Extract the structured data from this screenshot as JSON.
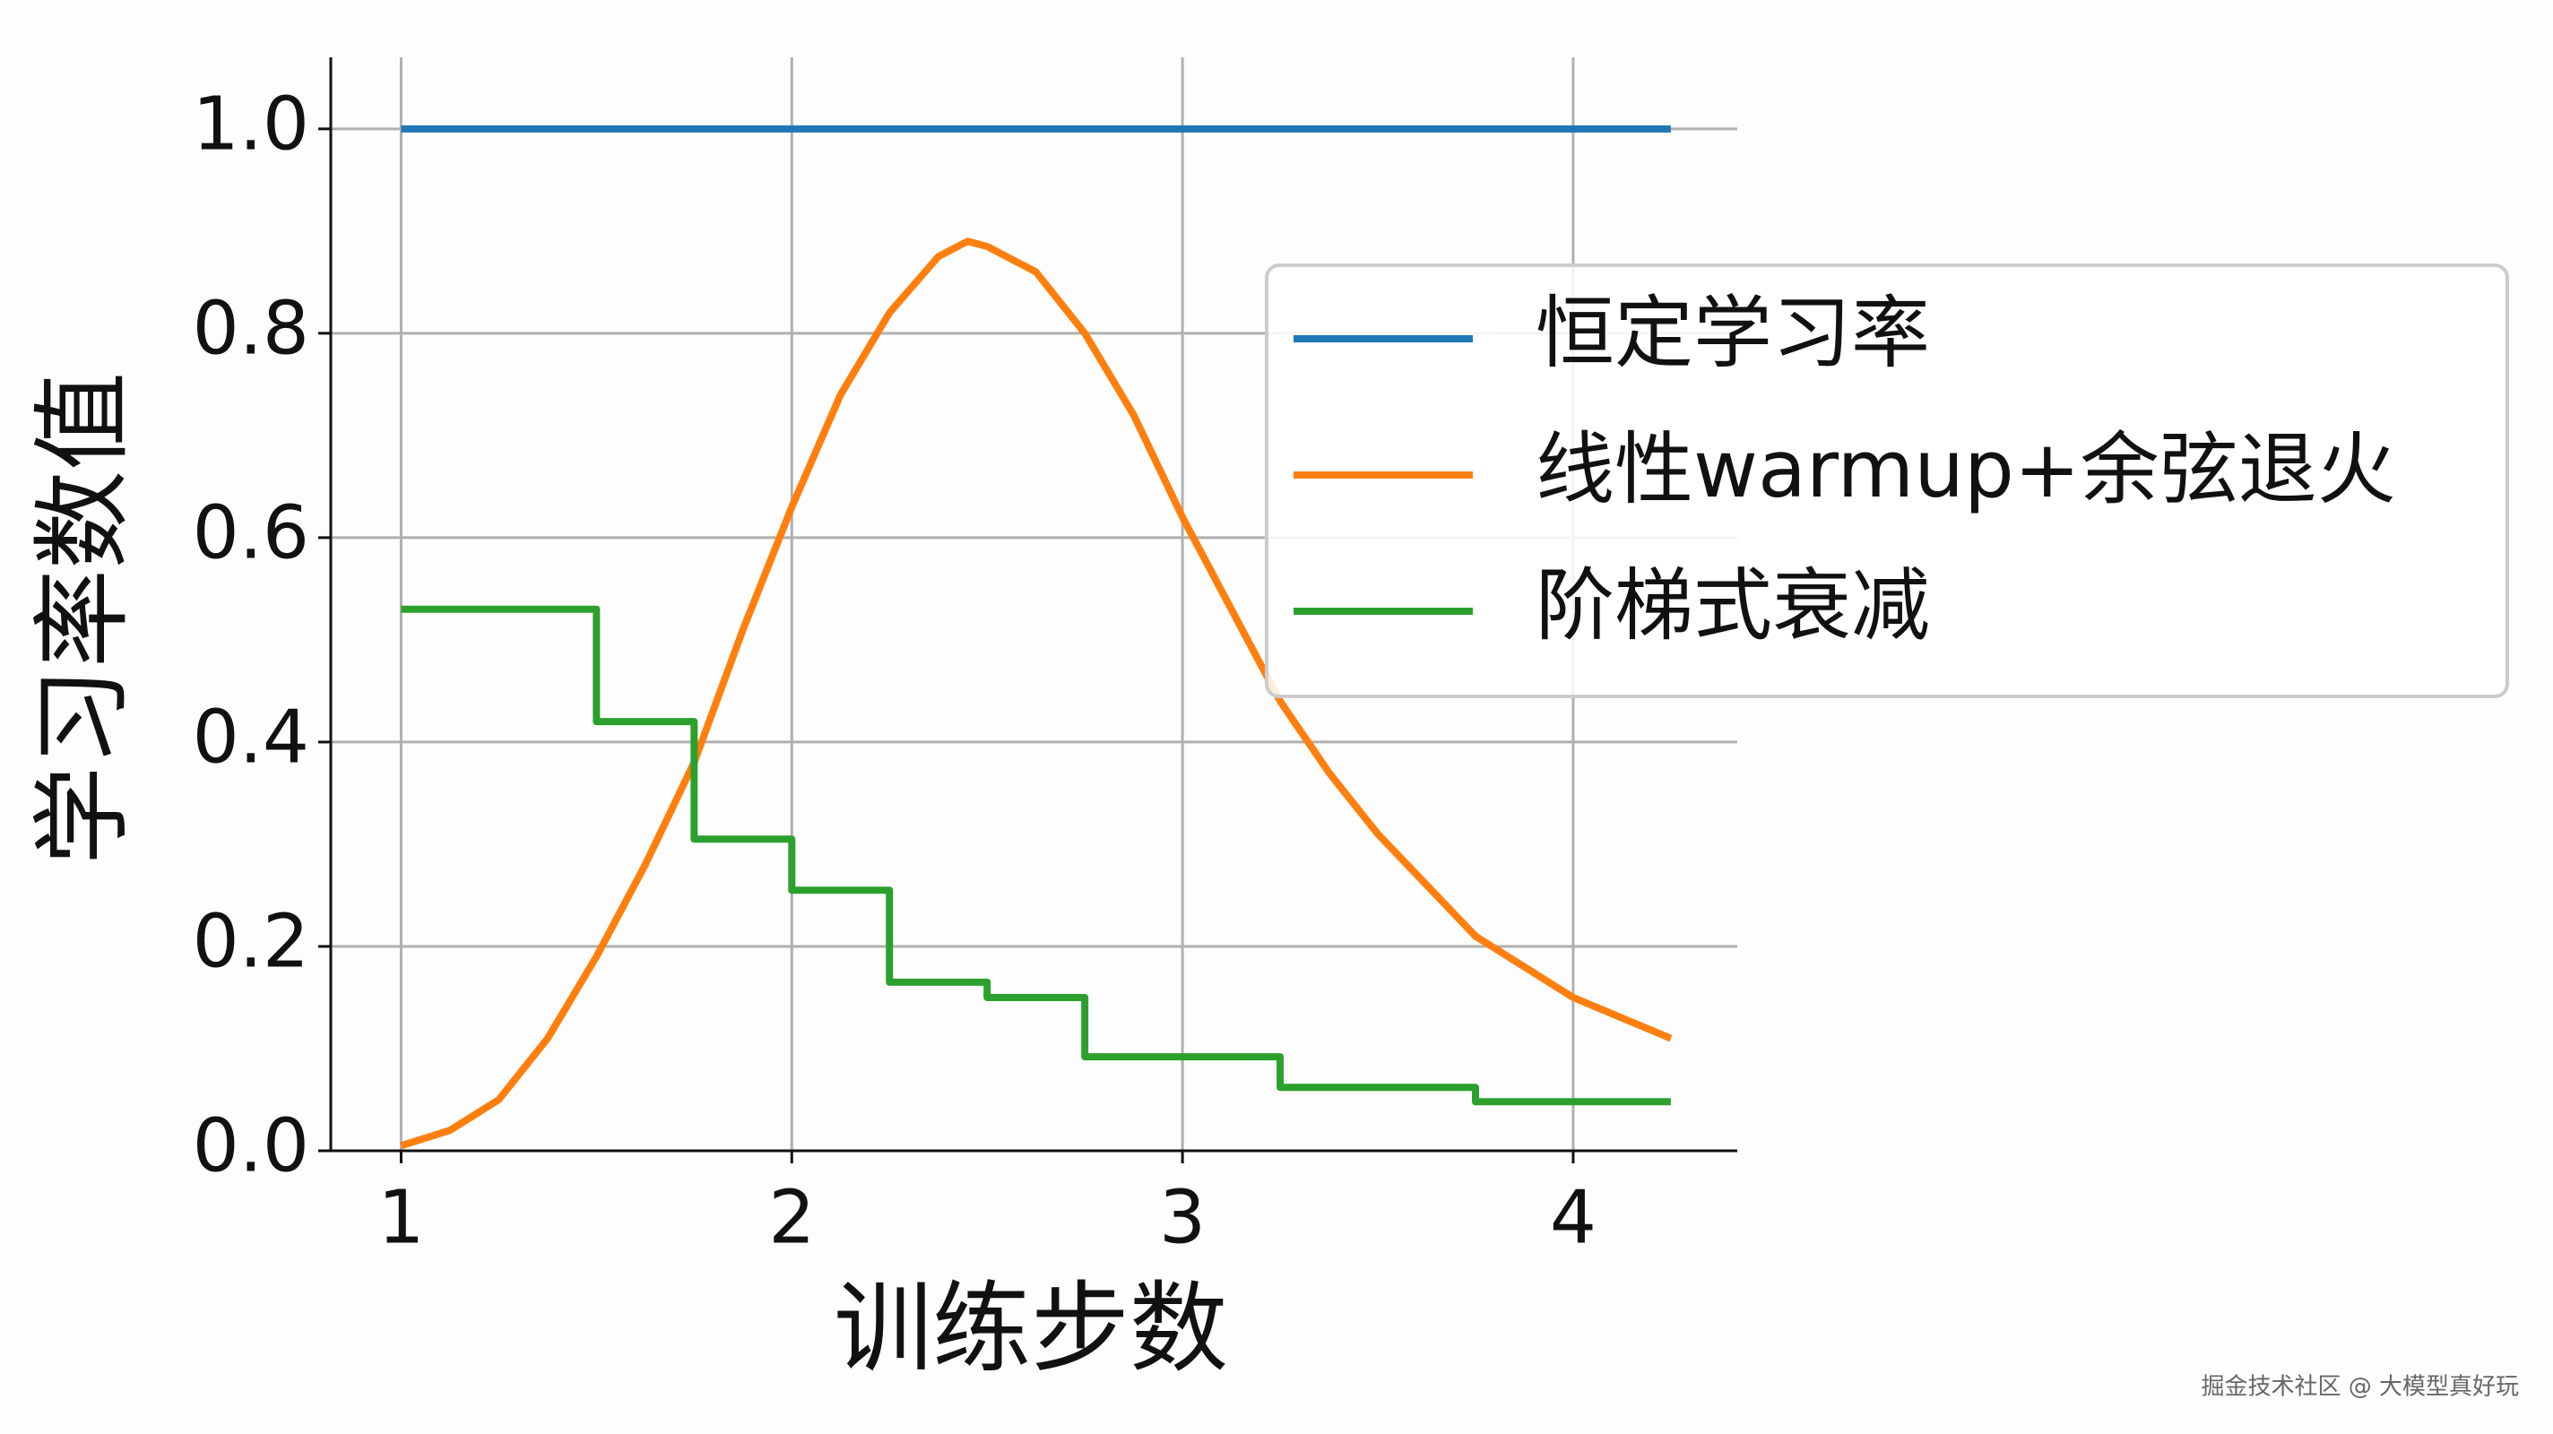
{
  "chart_data": {
    "type": "line",
    "xlabel": "训练步数",
    "ylabel": "学习率数值",
    "xlim": [
      0.82,
      4.42
    ],
    "ylim": [
      0,
      1.07
    ],
    "xticks": [
      1,
      2,
      3,
      4
    ],
    "yticks": [
      {
        "value": 0,
        "label": "0.0"
      },
      {
        "value": 0.2,
        "label": "0.2"
      },
      {
        "value": 0.4,
        "label": "0.4"
      },
      {
        "value": 0.6,
        "label": "0.6"
      },
      {
        "value": 0.8,
        "label": "0.8"
      },
      {
        "value": 1,
        "label": "1.0"
      }
    ],
    "grid": true,
    "legend": "upper right",
    "series": [
      {
        "name": "恒定学习率",
        "color": "#1f77b4",
        "x": [
          1,
          4.25
        ],
        "values": [
          1,
          1
        ]
      },
      {
        "name": "线性warmup+余弦退火",
        "color": "#ff7f0e",
        "x": [
          1,
          1.125,
          1.25,
          1.375,
          1.5,
          1.625,
          1.75,
          1.875,
          2,
          2.125,
          2.25,
          2.375,
          2.45,
          2.5,
          2.625,
          2.75,
          2.875,
          3,
          3.125,
          3.25,
          3.375,
          3.5,
          3.625,
          3.75,
          3.875,
          4,
          4.125,
          4.25
        ],
        "values": [
          0.005,
          0.02,
          0.05,
          0.11,
          0.19,
          0.28,
          0.38,
          0.51,
          0.63,
          0.74,
          0.82,
          0.875,
          0.89,
          0.885,
          0.86,
          0.8,
          0.72,
          0.62,
          0.53,
          0.44,
          0.37,
          0.31,
          0.26,
          0.21,
          0.18,
          0.15,
          0.13,
          0.11
        ]
      },
      {
        "name": "阶梯式衰减",
        "color": "#2ca02c",
        "x": [
          1,
          1.5,
          1.5,
          1.75,
          1.75,
          2,
          2,
          2.25,
          2.25,
          2.5,
          2.5,
          2.75,
          2.75,
          3.25,
          3.25,
          3.75,
          3.75,
          4.25
        ],
        "values": [
          0.53,
          0.53,
          0.42,
          0.42,
          0.305,
          0.305,
          0.255,
          0.255,
          0.165,
          0.165,
          0.15,
          0.15,
          0.092,
          0.092,
          0.062,
          0.062,
          0.048,
          0.048
        ]
      }
    ],
    "watermark": "掘金技术社区 @ 大模型真好玩"
  }
}
